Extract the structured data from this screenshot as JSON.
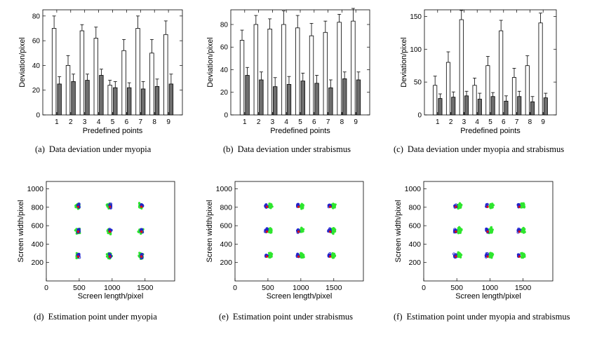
{
  "chart_data": [
    {
      "type": "bar",
      "id": "a",
      "caption_label": "(a)",
      "caption": "Data deviation under myopia",
      "xlabel": "Predefined points",
      "ylabel": "Deviation/pixel",
      "categories": [
        "1",
        "2",
        "3",
        "4",
        "5",
        "6",
        "7",
        "8",
        "9"
      ],
      "ylim": [
        0,
        85
      ],
      "yticks": [
        0,
        20,
        40,
        60,
        80
      ],
      "series": [
        {
          "name": "white",
          "color": "#ffffff",
          "values": [
            70,
            40,
            68,
            62,
            24,
            52,
            70,
            50,
            65
          ],
          "errors": [
            10,
            8,
            5,
            9,
            4,
            9,
            10,
            11,
            11
          ]
        },
        {
          "name": "gray",
          "color": "#6e6e6e",
          "values": [
            25,
            27,
            28,
            32,
            22,
            22,
            21,
            23,
            25
          ],
          "errors": [
            6,
            6,
            5,
            5,
            5,
            4,
            6,
            6,
            8
          ]
        }
      ]
    },
    {
      "type": "bar",
      "id": "b",
      "caption_label": "(b)",
      "caption": "Data deviation under strabismus",
      "xlabel": "Predefined points",
      "ylabel": "Deviation/pixel",
      "categories": [
        "1",
        "2",
        "3",
        "4",
        "5",
        "6",
        "7",
        "8",
        "9"
      ],
      "ylim": [
        0,
        93
      ],
      "yticks": [
        0,
        20,
        40,
        60,
        80
      ],
      "series": [
        {
          "name": "white",
          "color": "#ffffff",
          "values": [
            66,
            80,
            76,
            80,
            77,
            70,
            73,
            82,
            83
          ],
          "errors": [
            9,
            8,
            9,
            12,
            11,
            11,
            10,
            7,
            12
          ]
        },
        {
          "name": "gray",
          "color": "#6e6e6e",
          "values": [
            35,
            31,
            25,
            27,
            30,
            28,
            24,
            32,
            31
          ],
          "errors": [
            7,
            7,
            8,
            7,
            7,
            7,
            7,
            6,
            7
          ]
        }
      ]
    },
    {
      "type": "bar",
      "id": "c",
      "caption_label": "(c)",
      "caption": "Data deviation under myopia and strabismus",
      "xlabel": "Predefined points",
      "ylabel": "Deviation/pixel",
      "categories": [
        "1",
        "2",
        "3",
        "4",
        "5",
        "6",
        "7",
        "8",
        "9"
      ],
      "ylim": [
        0,
        160
      ],
      "yticks": [
        0,
        50,
        100,
        150
      ],
      "series": [
        {
          "name": "white",
          "color": "#ffffff",
          "values": [
            45,
            80,
            145,
            45,
            75,
            128,
            57,
            75,
            140
          ],
          "errors": [
            14,
            16,
            14,
            11,
            14,
            16,
            14,
            15,
            15
          ]
        },
        {
          "name": "gray",
          "color": "#6e6e6e",
          "values": [
            25,
            27,
            29,
            24,
            28,
            21,
            28,
            20,
            26
          ],
          "errors": [
            7,
            8,
            7,
            9,
            6,
            8,
            8,
            8,
            7
          ]
        }
      ]
    },
    {
      "type": "scatter",
      "id": "d",
      "caption_label": "(d)",
      "caption": "Estimation point under myopia",
      "xlabel": "Screen length/pixel",
      "ylabel": "Screen width/pixel",
      "xlim": [
        0,
        1950
      ],
      "ylim": [
        0,
        1080
      ],
      "xticks": [
        0,
        500,
        1000,
        1500
      ],
      "yticks": [
        200,
        400,
        600,
        800,
        1000
      ],
      "targets": [
        [
          480,
          270
        ],
        [
          960,
          270
        ],
        [
          1440,
          270
        ],
        [
          480,
          540
        ],
        [
          960,
          540
        ],
        [
          1440,
          540
        ],
        [
          480,
          810
        ],
        [
          960,
          810
        ],
        [
          1440,
          810
        ]
      ],
      "blue_offset": [
        10,
        5
      ],
      "green_offset": [
        -5,
        2
      ],
      "green_spread": [
        45,
        40
      ],
      "series_colors": {
        "green": "#2ee62e",
        "blue": "#2222cc",
        "red": "#dd1111"
      }
    },
    {
      "type": "scatter",
      "id": "e",
      "caption_label": "(e)",
      "caption": "Estimation point under strabismus",
      "xlabel": "Screen length/pixel",
      "ylabel": "Screen width/pixel",
      "xlim": [
        0,
        1950
      ],
      "ylim": [
        0,
        1080
      ],
      "xticks": [
        0,
        500,
        1000,
        1500
      ],
      "yticks": [
        200,
        400,
        600,
        800,
        1000
      ],
      "targets": [
        [
          480,
          270
        ],
        [
          960,
          270
        ],
        [
          1440,
          270
        ],
        [
          480,
          540
        ],
        [
          960,
          540
        ],
        [
          1440,
          540
        ],
        [
          480,
          810
        ],
        [
          960,
          810
        ],
        [
          1440,
          810
        ]
      ],
      "blue_offset": [
        -5,
        8
      ],
      "green_offset": [
        55,
        5
      ],
      "green_spread": [
        38,
        38
      ],
      "series_colors": {
        "green": "#2ee62e",
        "blue": "#2222cc",
        "red": "#dd1111"
      }
    },
    {
      "type": "scatter",
      "id": "f",
      "caption_label": "(f)",
      "caption": "Estimation point under myopia and strabismus",
      "xlabel": "Screen length/pixel",
      "ylabel": "Screen width/pixel",
      "xlim": [
        0,
        1950
      ],
      "ylim": [
        0,
        1080
      ],
      "xticks": [
        0,
        500,
        1000,
        1500
      ],
      "yticks": [
        200,
        400,
        600,
        800,
        1000
      ],
      "targets": [
        [
          480,
          270
        ],
        [
          960,
          270
        ],
        [
          1440,
          270
        ],
        [
          480,
          540
        ],
        [
          960,
          540
        ],
        [
          1440,
          540
        ],
        [
          480,
          810
        ],
        [
          960,
          810
        ],
        [
          1440,
          810
        ]
      ],
      "blue_offset": [
        -5,
        5
      ],
      "green_offset": [
        60,
        10
      ],
      "green_spread": [
        40,
        42
      ],
      "series_colors": {
        "green": "#2ee62e",
        "blue": "#2222cc",
        "red": "#dd1111"
      }
    }
  ]
}
